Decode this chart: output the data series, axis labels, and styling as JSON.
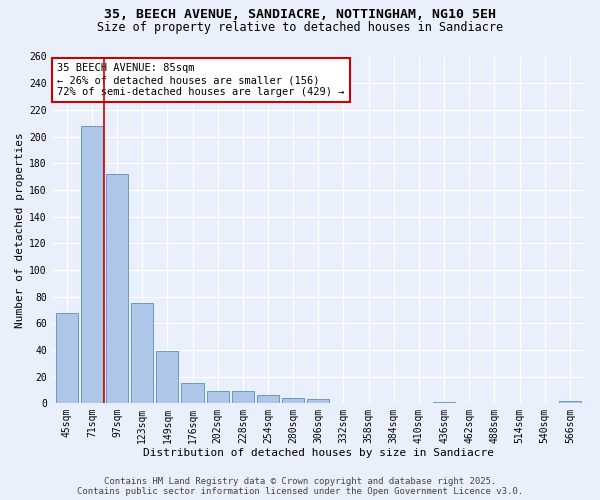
{
  "title_line1": "35, BEECH AVENUE, SANDIACRE, NOTTINGHAM, NG10 5EH",
  "title_line2": "Size of property relative to detached houses in Sandiacre",
  "xlabel": "Distribution of detached houses by size in Sandiacre",
  "ylabel": "Number of detached properties",
  "categories": [
    "45sqm",
    "71sqm",
    "97sqm",
    "123sqm",
    "149sqm",
    "176sqm",
    "202sqm",
    "228sqm",
    "254sqm",
    "280sqm",
    "306sqm",
    "332sqm",
    "358sqm",
    "384sqm",
    "410sqm",
    "436sqm",
    "462sqm",
    "488sqm",
    "514sqm",
    "540sqm",
    "566sqm"
  ],
  "values": [
    68,
    208,
    172,
    75,
    39,
    15,
    9,
    9,
    6,
    4,
    3,
    0,
    0,
    0,
    0,
    1,
    0,
    0,
    0,
    0,
    2
  ],
  "bar_color": "#aec6e8",
  "bar_edge_color": "#5a8fc2",
  "bar_edge_width": 0.6,
  "red_line_color": "#cc0000",
  "annotation_text": "35 BEECH AVENUE: 85sqm\n← 26% of detached houses are smaller (156)\n72% of semi-detached houses are larger (429) →",
  "annotation_box_color": "white",
  "annotation_box_edge_color": "#cc0000",
  "ylim": [
    0,
    260
  ],
  "yticks": [
    0,
    20,
    40,
    60,
    80,
    100,
    120,
    140,
    160,
    180,
    200,
    220,
    240,
    260
  ],
  "background_color": "#eaf0fb",
  "grid_color": "#ffffff",
  "footer_text": "Contains HM Land Registry data © Crown copyright and database right 2025.\nContains public sector information licensed under the Open Government Licence v3.0.",
  "title_fontsize": 9.5,
  "subtitle_fontsize": 8.5,
  "axis_label_fontsize": 8,
  "tick_fontsize": 7,
  "annotation_fontsize": 7.5,
  "footer_fontsize": 6.5
}
